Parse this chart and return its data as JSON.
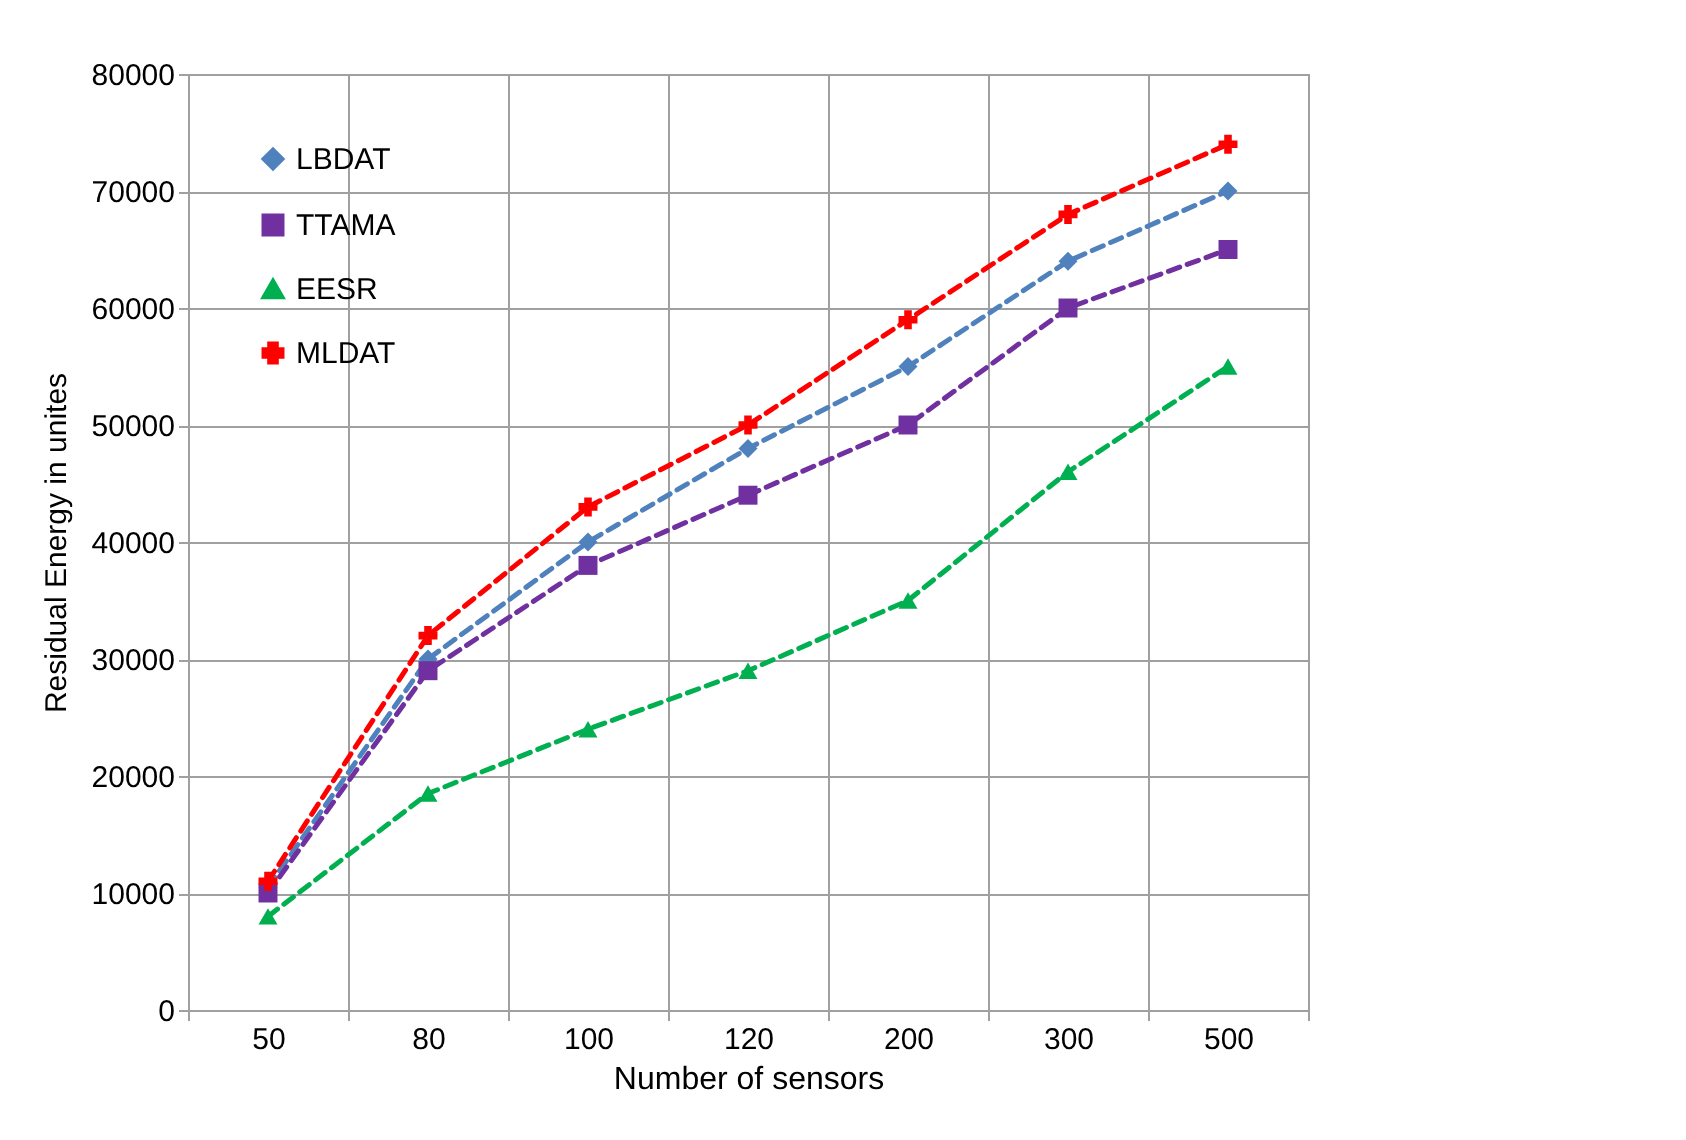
{
  "chart_data": {
    "type": "line",
    "xlabel": "Number of sensors",
    "ylabel": "Residual Energy in unites",
    "categories": [
      "50",
      "80",
      "100",
      "120",
      "200",
      "300",
      "500"
    ],
    "series": [
      {
        "name": "LBDAT",
        "color": "#4f81bd",
        "marker": "diamond",
        "values": [
          10500,
          30000,
          40000,
          48000,
          55000,
          64000,
          70000
        ]
      },
      {
        "name": "TTAMA",
        "color": "#7030a0",
        "marker": "square",
        "values": [
          10000,
          29000,
          38000,
          44000,
          50000,
          60000,
          65000
        ]
      },
      {
        "name": "EESR",
        "color": "#00b050",
        "marker": "triangle",
        "values": [
          8000,
          18500,
          24000,
          29000,
          35000,
          46000,
          55000
        ]
      },
      {
        "name": "MLDAT",
        "color": "#ff0000",
        "marker": "cross",
        "values": [
          11000,
          32000,
          43000,
          50000,
          59000,
          68000,
          74000
        ]
      }
    ],
    "ylim": [
      0,
      80000
    ],
    "yticks": [
      0,
      10000,
      20000,
      30000,
      40000,
      50000,
      60000,
      70000,
      80000
    ],
    "grid": true,
    "legend": "top left",
    "line_style": "dashed"
  }
}
